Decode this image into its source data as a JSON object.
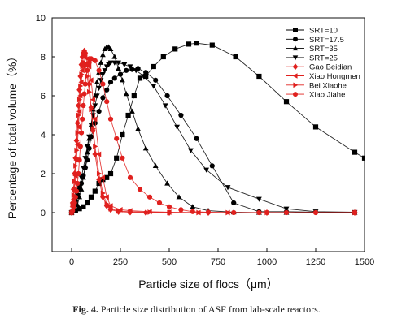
{
  "chart_data": {
    "type": "line",
    "xlabel": "Particle size of flocs（μm）",
    "ylabel": "Percentage of total volume（%）",
    "xlim": [
      -100,
      1500
    ],
    "ylim": [
      -2,
      10
    ],
    "xticks": [
      0,
      250,
      500,
      750,
      1000,
      1250,
      1500
    ],
    "yticks": [
      0,
      2,
      4,
      6,
      8,
      10
    ],
    "grid": false,
    "legend_position": "top-right",
    "series": [
      {
        "name": "SRT=10",
        "color": "#000000",
        "marker": "square",
        "x": [
          0,
          20,
          40,
          60,
          80,
          100,
          120,
          140,
          160,
          180,
          200,
          230,
          260,
          290,
          320,
          350,
          380,
          420,
          470,
          530,
          600,
          640,
          720,
          840,
          960,
          1100,
          1250,
          1450,
          1500
        ],
        "y": [
          0,
          0.1,
          0.2,
          0.3,
          0.5,
          0.8,
          1.1,
          1.5,
          1.7,
          1.8,
          2.0,
          2.8,
          4.0,
          5.0,
          6.0,
          6.9,
          7.0,
          7.5,
          8.0,
          8.4,
          8.65,
          8.7,
          8.6,
          8.0,
          7.0,
          5.7,
          4.4,
          3.1,
          2.8
        ]
      },
      {
        "name": "SRT=17.5",
        "color": "#000000",
        "marker": "circle",
        "x": [
          0,
          10,
          20,
          30,
          40,
          50,
          60,
          70,
          80,
          90,
          100,
          120,
          140,
          160,
          180,
          200,
          220,
          250,
          280,
          310,
          340,
          380,
          430,
          490,
          560,
          640,
          720,
          830,
          960,
          1100,
          1250,
          1450
        ],
        "y": [
          0,
          0.3,
          0.6,
          0.9,
          1.2,
          1.5,
          1.9,
          2.3,
          2.7,
          3.3,
          3.9,
          4.6,
          5.2,
          5.9,
          6.3,
          6.7,
          6.9,
          7.1,
          7.3,
          7.35,
          7.4,
          7.2,
          6.8,
          6.0,
          5.0,
          3.8,
          2.4,
          0.5,
          0.05,
          0.05,
          0.02,
          0.0
        ]
      },
      {
        "name": "SRT=35",
        "color": "#000000",
        "marker": "triangle-up",
        "x": [
          0,
          10,
          20,
          30,
          40,
          50,
          60,
          70,
          80,
          90,
          100,
          110,
          120,
          130,
          140,
          150,
          160,
          170,
          180,
          190,
          200,
          220,
          240,
          260,
          280,
          310,
          340,
          380,
          430,
          490,
          550,
          620,
          700,
          830,
          960,
          1100,
          1450
        ],
        "y": [
          0,
          0.1,
          0.2,
          0.4,
          0.8,
          1.2,
          1.8,
          2.4,
          3.1,
          3.8,
          4.5,
          5.3,
          6.0,
          6.7,
          7.2,
          7.7,
          8.1,
          8.4,
          8.5,
          8.5,
          8.4,
          8.0,
          7.4,
          6.8,
          6.1,
          5.2,
          4.3,
          3.3,
          2.4,
          1.5,
          0.8,
          0.3,
          0.1,
          0.02,
          0.0,
          0.0,
          0.0
        ]
      },
      {
        "name": "SRT=25",
        "color": "#000000",
        "marker": "triangle-down",
        "x": [
          0,
          10,
          20,
          30,
          40,
          50,
          60,
          70,
          80,
          90,
          100,
          110,
          120,
          130,
          140,
          150,
          160,
          170,
          180,
          190,
          200,
          220,
          240,
          270,
          300,
          330,
          370,
          420,
          480,
          540,
          610,
          690,
          800,
          960,
          1100,
          1250,
          1450
        ],
        "y": [
          0,
          0.2,
          0.5,
          0.9,
          1.3,
          1.8,
          2.3,
          2.8,
          3.4,
          3.9,
          4.5,
          5.0,
          5.5,
          6.0,
          6.4,
          6.8,
          7.1,
          7.3,
          7.5,
          7.6,
          7.7,
          7.7,
          7.7,
          7.6,
          7.5,
          7.3,
          7.0,
          6.5,
          5.5,
          4.4,
          3.2,
          2.2,
          1.3,
          0.7,
          0.2,
          0.05,
          0.02
        ]
      },
      {
        "name": "Gao Beidian",
        "color": "#e0201e",
        "marker": "diamond",
        "x": [
          0,
          5,
          10,
          15,
          20,
          25,
          30,
          35,
          40,
          45,
          50,
          55,
          60,
          65,
          70,
          80,
          90,
          100,
          110,
          120,
          140,
          160,
          180,
          200,
          240,
          300,
          380,
          500,
          700,
          1000,
          1450
        ],
        "y": [
          0,
          0.5,
          1.2,
          2.0,
          2.8,
          3.7,
          4.6,
          5.5,
          6.3,
          7.0,
          7.6,
          8.0,
          8.2,
          8.3,
          8.2,
          7.6,
          6.6,
          5.4,
          4.2,
          3.0,
          1.7,
          0.8,
          0.35,
          0.15,
          0.05,
          0.02,
          0.0,
          0.0,
          0.0,
          0.0,
          0.0
        ]
      },
      {
        "name": "Xiao Hongmen",
        "color": "#e0201e",
        "marker": "triangle-left",
        "x": [
          0,
          5,
          10,
          15,
          20,
          25,
          30,
          35,
          40,
          45,
          50,
          55,
          60,
          65,
          70,
          80,
          90,
          100,
          110,
          120,
          140,
          160,
          180,
          200,
          250,
          300,
          400,
          500,
          650,
          800,
          1000,
          1450
        ],
        "y": [
          0,
          0.3,
          0.7,
          1.2,
          1.9,
          2.7,
          3.5,
          4.4,
          5.2,
          6.0,
          6.7,
          7.3,
          7.7,
          8.0,
          8.1,
          7.9,
          7.5,
          6.8,
          5.8,
          4.8,
          3.0,
          1.8,
          0.8,
          0.35,
          0.15,
          0.1,
          0.05,
          0.02,
          0.0,
          0.0,
          0.0,
          0.0
        ]
      },
      {
        "name": "Bei Xiaohe",
        "color": "#e0201e",
        "marker": "triangle-right",
        "x": [
          0,
          5,
          10,
          15,
          20,
          25,
          30,
          35,
          40,
          45,
          50,
          55,
          60,
          65,
          70,
          80,
          90,
          100,
          110,
          120,
          140,
          160,
          180,
          200,
          240,
          300,
          400,
          500,
          650,
          800,
          1000,
          1450
        ],
        "y": [
          0,
          0.4,
          0.9,
          1.6,
          2.4,
          3.2,
          4.1,
          5.0,
          5.8,
          6.5,
          7.1,
          7.5,
          7.7,
          7.7,
          7.5,
          7.0,
          6.2,
          5.3,
          4.3,
          3.4,
          2.0,
          1.0,
          0.45,
          0.2,
          0.08,
          0.05,
          0.02,
          0.0,
          0.0,
          0.0,
          0.0,
          0.0
        ]
      },
      {
        "name": "Xiao Jiahe",
        "color": "#e0201e",
        "marker": "circle",
        "x": [
          0,
          5,
          10,
          15,
          20,
          25,
          30,
          35,
          40,
          45,
          50,
          55,
          60,
          65,
          70,
          80,
          90,
          100,
          120,
          140,
          160,
          180,
          200,
          230,
          260,
          300,
          350,
          400,
          450,
          500,
          560,
          620,
          700,
          830,
          960,
          1100,
          1250,
          1450
        ],
        "y": [
          0,
          0.1,
          0.3,
          0.5,
          0.8,
          1.1,
          1.5,
          2.0,
          2.7,
          3.4,
          4.1,
          4.8,
          5.5,
          6.1,
          6.6,
          7.3,
          7.7,
          7.9,
          7.8,
          7.3,
          6.6,
          5.7,
          4.8,
          3.8,
          2.8,
          1.8,
          1.2,
          0.8,
          0.5,
          0.3,
          0.15,
          0.05,
          0.02,
          0.0,
          0.0,
          0.0,
          0.0,
          0.0
        ]
      }
    ]
  },
  "caption": {
    "label": "Fig. 4.",
    "text": "Particle size distribution of ASF from lab-scale reactors."
  }
}
